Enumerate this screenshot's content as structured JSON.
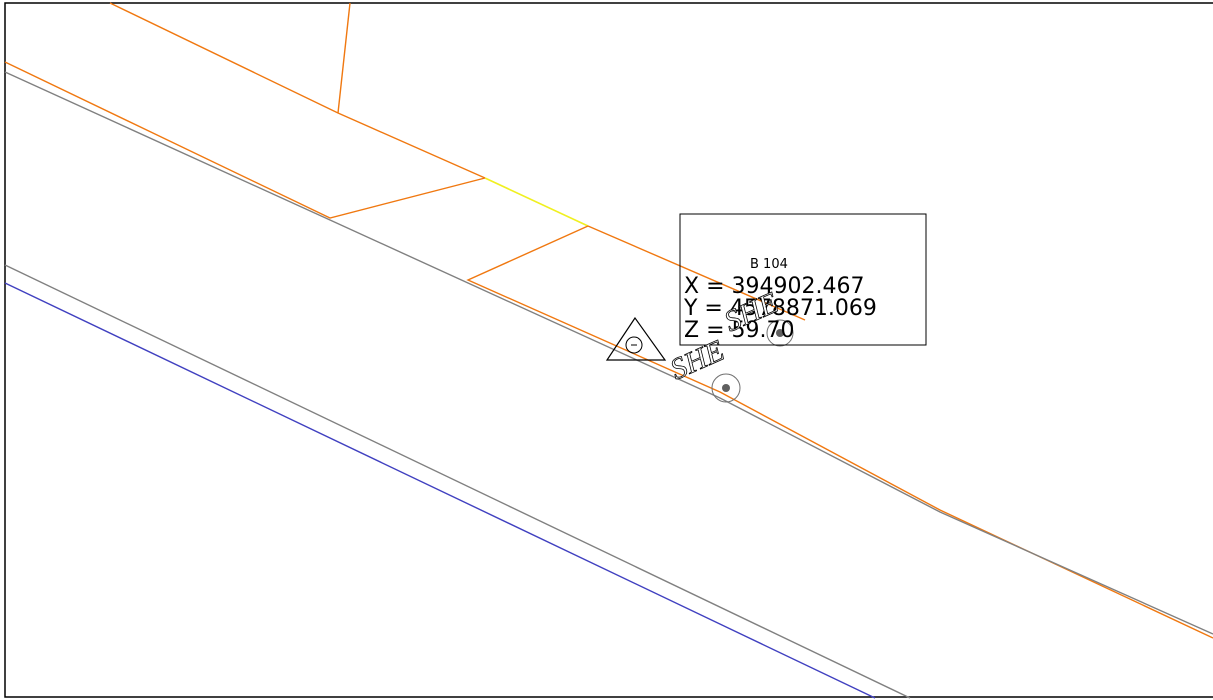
{
  "point": {
    "name": "B 104",
    "coordinates": [
      "X = 394902.467",
      "Y = 4578871.069",
      "Z = 59.70"
    ]
  },
  "annotations": [
    "SHE",
    "SHE"
  ]
}
